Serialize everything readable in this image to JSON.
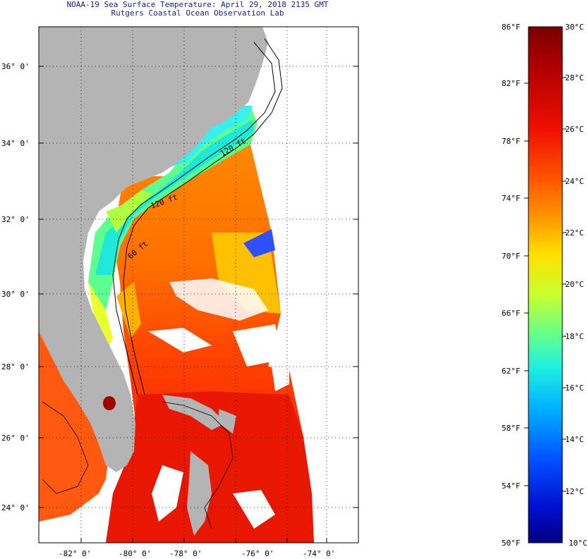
{
  "title": {
    "line1": "NOAA-19 Sea Surface Temperature:  April 29, 2018 2135 GMT",
    "line2": "Rutgers Coastal Ocean Observation Lab"
  },
  "map": {
    "lat_labels": [
      "36° 0'",
      "34° 0'",
      "32° 0'",
      "30° 0'",
      "28° 0'",
      "26° 0'",
      "24° 0'"
    ],
    "lon_labels": [
      "-82° 0'",
      "-80° 0'",
      "-78° 0'",
      "-76° 0'",
      "-74° 0'"
    ],
    "contour_labels": [
      "120 ft",
      "60 ft",
      "120 ft"
    ],
    "land_color": "#b4b4b4",
    "background_color": "#ffffff"
  },
  "colorbar": {
    "fahrenheit_labels": [
      "86°F",
      "82°F",
      "78°F",
      "74°F",
      "70°F",
      "66°F",
      "62°F",
      "58°F",
      "54°F",
      "50°F"
    ],
    "celsius_labels": [
      "30°C",
      "28°C",
      "26°C",
      "24°C",
      "22°C",
      "20°C",
      "18°C",
      "16°C",
      "14°C",
      "12°C",
      "10°C"
    ],
    "colors_top_to_bottom": [
      "#7a0000",
      "#c40000",
      "#ff3000",
      "#ff8000",
      "#ffd000",
      "#e0ff20",
      "#70ff80",
      "#20e0e0",
      "#00a0ff",
      "#0040ff",
      "#000090"
    ]
  }
}
